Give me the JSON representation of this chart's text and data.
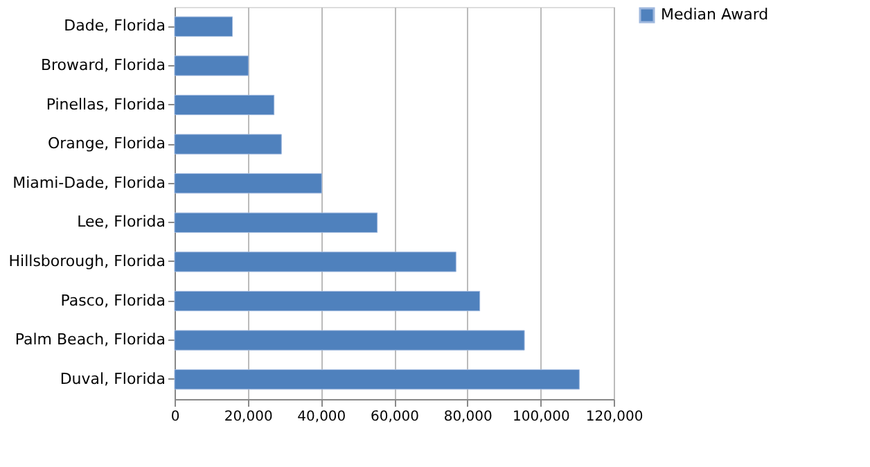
{
  "chart_data": {
    "type": "bar",
    "orientation": "horizontal",
    "categories": [
      "Dade, Florida",
      "Broward, Florida",
      "Pinellas, Florida",
      "Orange, Florida",
      "Miami-Dade, Florida",
      "Lee, Florida",
      "Hillsborough, Florida",
      "Pasco, Florida",
      "Palm Beach, Florida",
      "Duval, Florida"
    ],
    "series": [
      {
        "name": "Median Award",
        "color": "#4f81bd",
        "values": [
          15800,
          20200,
          27200,
          29200,
          40200,
          55400,
          76900,
          83400,
          95600,
          110600
        ]
      }
    ],
    "xlim": [
      0,
      120000
    ],
    "xticks": [
      {
        "value": 0,
        "label": "0"
      },
      {
        "value": 20000,
        "label": "20,000"
      },
      {
        "value": 40000,
        "label": "40,000"
      },
      {
        "value": 60000,
        "label": "60,000"
      },
      {
        "value": 80000,
        "label": "80,000"
      },
      {
        "value": 100000,
        "label": "100,000"
      },
      {
        "value": 120000,
        "label": "120,000"
      }
    ],
    "grid": "x",
    "legend": "right"
  }
}
